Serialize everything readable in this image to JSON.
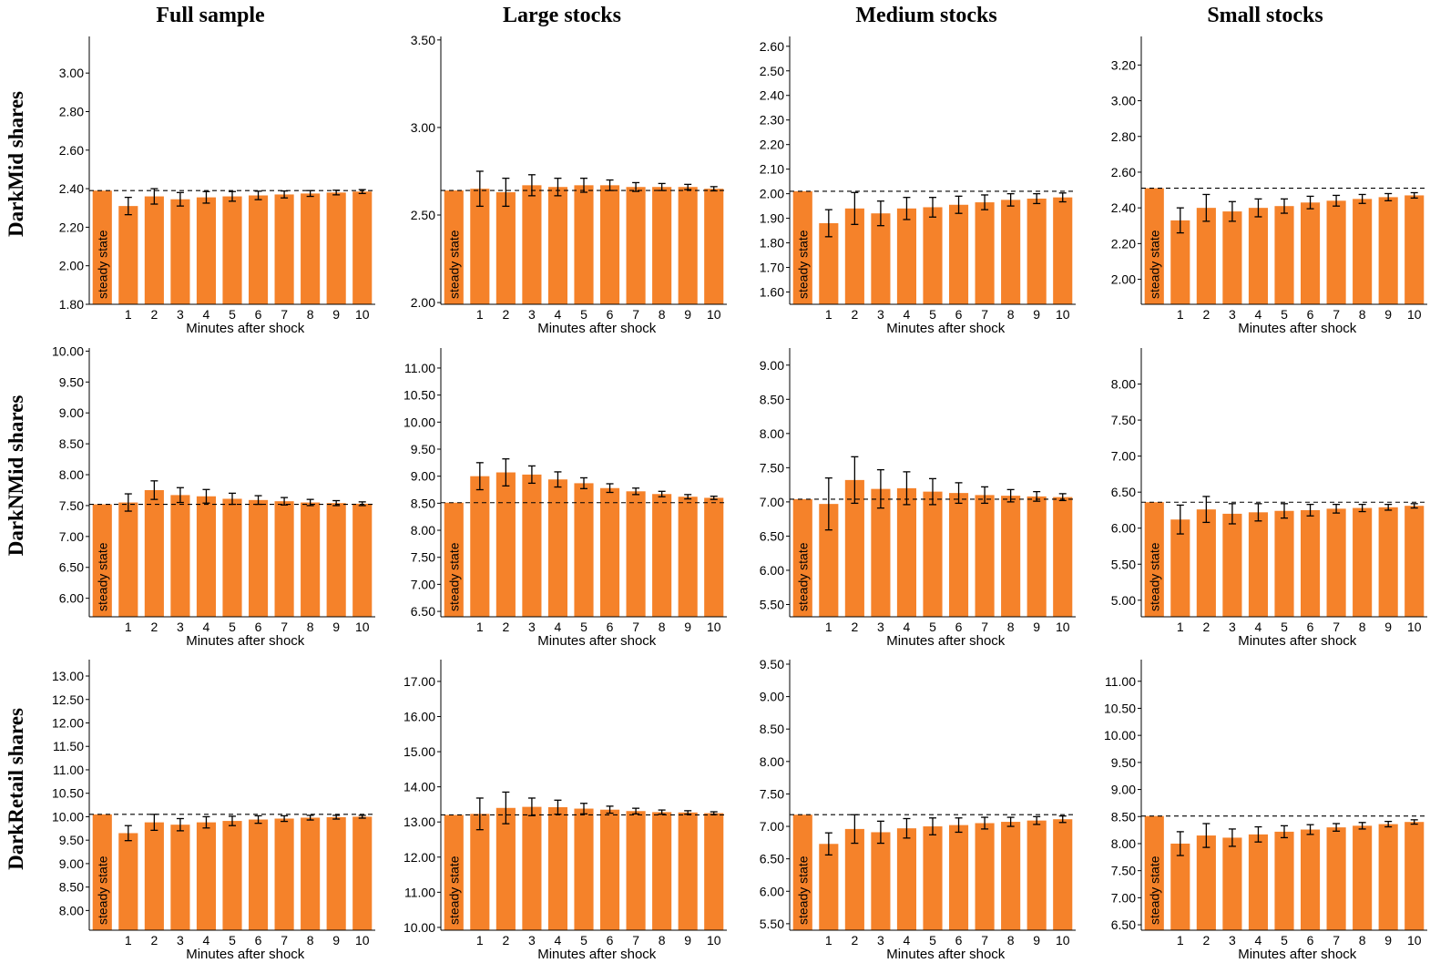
{
  "column_titles": [
    "Full sample",
    "Large stocks",
    "Medium stocks",
    "Small stocks"
  ],
  "row_titles": [
    "DarkMid shares",
    "DarkNMid shares",
    "DarkRetail shares"
  ],
  "colors": {
    "bar": "#f5822a",
    "axis": "#000000",
    "error": "#000000",
    "reference": "#000000"
  },
  "chart_data": [
    {
      "type": "bar",
      "row": "DarkMid shares",
      "column": "Full sample",
      "categories": [
        "1",
        "2",
        "3",
        "4",
        "5",
        "6",
        "7",
        "8",
        "9",
        "10"
      ],
      "xlabel": "Minutes after shock",
      "steady_state_label": "steady state",
      "steady_state": 2.39,
      "ylim": [
        1.8,
        3.19
      ],
      "yticks": [
        "1.80",
        "2.00",
        "2.20",
        "2.40",
        "2.60",
        "2.80",
        "3.00"
      ],
      "values": [
        2.31,
        2.36,
        2.345,
        2.355,
        2.36,
        2.365,
        2.37,
        2.375,
        2.38,
        2.385
      ],
      "errors": [
        0.045,
        0.04,
        0.035,
        0.03,
        0.025,
        0.022,
        0.018,
        0.015,
        0.012,
        0.01
      ]
    },
    {
      "type": "bar",
      "row": "DarkMid shares",
      "column": "Large stocks",
      "categories": [
        "1",
        "2",
        "3",
        "4",
        "5",
        "6",
        "7",
        "8",
        "9",
        "10"
      ],
      "xlabel": "Minutes after shock",
      "steady_state_label": "steady state",
      "steady_state": 2.64,
      "ylim": [
        1.99,
        3.52
      ],
      "yticks": [
        "2.00",
        "2.50",
        "3.00",
        "3.50"
      ],
      "values": [
        2.65,
        2.63,
        2.67,
        2.66,
        2.67,
        2.67,
        2.66,
        2.66,
        2.66,
        2.65
      ],
      "errors": [
        0.1,
        0.08,
        0.06,
        0.05,
        0.04,
        0.03,
        0.025,
        0.02,
        0.015,
        0.012
      ]
    },
    {
      "type": "bar",
      "row": "DarkMid shares",
      "column": "Medium stocks",
      "categories": [
        "1",
        "2",
        "3",
        "4",
        "5",
        "6",
        "7",
        "8",
        "9",
        "10"
      ],
      "xlabel": "Minutes after shock",
      "steady_state_label": "steady state",
      "steady_state": 2.01,
      "ylim": [
        1.55,
        2.64
      ],
      "yticks": [
        "1.60",
        "1.70",
        "1.80",
        "1.90",
        "2.00",
        "2.10",
        "2.20",
        "2.30",
        "2.40",
        "2.50",
        "2.60"
      ],
      "values": [
        1.88,
        1.94,
        1.92,
        1.94,
        1.945,
        1.955,
        1.965,
        1.975,
        1.98,
        1.985
      ],
      "errors": [
        0.055,
        0.065,
        0.05,
        0.045,
        0.04,
        0.035,
        0.03,
        0.025,
        0.02,
        0.018
      ]
    },
    {
      "type": "bar",
      "row": "DarkMid shares",
      "column": "Small stocks",
      "categories": [
        "1",
        "2",
        "3",
        "4",
        "5",
        "6",
        "7",
        "8",
        "9",
        "10"
      ],
      "xlabel": "Minutes after shock",
      "steady_state_label": "steady state",
      "steady_state": 2.51,
      "ylim": [
        1.86,
        3.36
      ],
      "yticks": [
        "2.00",
        "2.20",
        "2.40",
        "2.60",
        "2.80",
        "3.00",
        "3.20"
      ],
      "values": [
        2.33,
        2.4,
        2.38,
        2.4,
        2.41,
        2.43,
        2.44,
        2.45,
        2.46,
        2.47
      ],
      "errors": [
        0.07,
        0.075,
        0.055,
        0.05,
        0.04,
        0.035,
        0.03,
        0.025,
        0.02,
        0.015
      ]
    },
    {
      "type": "bar",
      "row": "DarkNMid shares",
      "column": "Full sample",
      "categories": [
        "1",
        "2",
        "3",
        "4",
        "5",
        "6",
        "7",
        "8",
        "9",
        "10"
      ],
      "xlabel": "Minutes after shock",
      "steady_state_label": "steady state",
      "steady_state": 7.52,
      "ylim": [
        5.7,
        10.05
      ],
      "yticks": [
        "6.00",
        "6.50",
        "7.00",
        "7.50",
        "8.00",
        "8.50",
        "9.00",
        "9.50",
        "10.00"
      ],
      "values": [
        7.55,
        7.75,
        7.67,
        7.65,
        7.61,
        7.59,
        7.57,
        7.55,
        7.54,
        7.53
      ],
      "errors": [
        0.14,
        0.15,
        0.12,
        0.11,
        0.09,
        0.07,
        0.06,
        0.05,
        0.04,
        0.03
      ]
    },
    {
      "type": "bar",
      "row": "DarkNMid shares",
      "column": "Large stocks",
      "categories": [
        "1",
        "2",
        "3",
        "4",
        "5",
        "6",
        "7",
        "8",
        "9",
        "10"
      ],
      "xlabel": "Minutes after shock",
      "steady_state_label": "steady state",
      "steady_state": 8.51,
      "ylim": [
        6.4,
        11.37
      ],
      "yticks": [
        "6.50",
        "7.00",
        "7.50",
        "8.00",
        "8.50",
        "9.00",
        "9.50",
        "10.00",
        "10.50",
        "11.00"
      ],
      "values": [
        9.0,
        9.07,
        9.03,
        8.94,
        8.87,
        8.78,
        8.72,
        8.67,
        8.62,
        8.6
      ],
      "errors": [
        0.25,
        0.25,
        0.16,
        0.14,
        0.1,
        0.08,
        0.06,
        0.05,
        0.04,
        0.03
      ]
    },
    {
      "type": "bar",
      "row": "DarkNMid shares",
      "column": "Medium stocks",
      "categories": [
        "1",
        "2",
        "3",
        "4",
        "5",
        "6",
        "7",
        "8",
        "9",
        "10"
      ],
      "xlabel": "Minutes after shock",
      "steady_state_label": "steady state",
      "steady_state": 7.04,
      "ylim": [
        5.32,
        9.25
      ],
      "yticks": [
        "5.50",
        "6.00",
        "6.50",
        "7.00",
        "7.50",
        "8.00",
        "8.50",
        "9.00"
      ],
      "values": [
        6.97,
        7.32,
        7.19,
        7.2,
        7.15,
        7.13,
        7.1,
        7.09,
        7.08,
        7.07
      ],
      "errors": [
        0.38,
        0.34,
        0.28,
        0.24,
        0.19,
        0.15,
        0.12,
        0.09,
        0.07,
        0.05
      ]
    },
    {
      "type": "bar",
      "row": "DarkNMid shares",
      "column": "Small stocks",
      "categories": [
        "1",
        "2",
        "3",
        "4",
        "5",
        "6",
        "7",
        "8",
        "9",
        "10"
      ],
      "xlabel": "Minutes after shock",
      "steady_state_label": "steady state",
      "steady_state": 6.36,
      "ylim": [
        4.77,
        8.5
      ],
      "yticks": [
        "5.00",
        "5.50",
        "6.00",
        "6.50",
        "7.00",
        "7.50",
        "8.00"
      ],
      "values": [
        6.12,
        6.26,
        6.2,
        6.22,
        6.24,
        6.25,
        6.27,
        6.28,
        6.29,
        6.31
      ],
      "errors": [
        0.2,
        0.18,
        0.14,
        0.12,
        0.1,
        0.08,
        0.06,
        0.05,
        0.04,
        0.03
      ]
    },
    {
      "type": "bar",
      "row": "DarkRetail shares",
      "column": "Full sample",
      "categories": [
        "1",
        "2",
        "3",
        "4",
        "5",
        "6",
        "7",
        "8",
        "9",
        "10"
      ],
      "xlabel": "Minutes after shock",
      "steady_state_label": "steady state",
      "steady_state": 10.05,
      "ylim": [
        7.58,
        13.35
      ],
      "yticks": [
        "8.00",
        "8.50",
        "9.00",
        "9.50",
        "10.00",
        "10.50",
        "11.00",
        "11.50",
        "12.00",
        "12.50",
        "13.00"
      ],
      "values": [
        9.65,
        9.88,
        9.83,
        9.88,
        9.91,
        9.94,
        9.96,
        9.98,
        9.99,
        10.0
      ],
      "errors": [
        0.16,
        0.17,
        0.13,
        0.12,
        0.1,
        0.08,
        0.06,
        0.05,
        0.04,
        0.03
      ]
    },
    {
      "type": "bar",
      "row": "DarkRetail shares",
      "column": "Large stocks",
      "categories": [
        "1",
        "2",
        "3",
        "4",
        "5",
        "6",
        "7",
        "8",
        "9",
        "10"
      ],
      "xlabel": "Minutes after shock",
      "steady_state_label": "steady state",
      "steady_state": 13.2,
      "ylim": [
        9.92,
        17.62
      ],
      "yticks": [
        "10.00",
        "11.00",
        "12.00",
        "13.00",
        "14.00",
        "15.00",
        "16.00",
        "17.00"
      ],
      "values": [
        13.23,
        13.4,
        13.43,
        13.42,
        13.38,
        13.35,
        13.31,
        13.28,
        13.27,
        13.25
      ],
      "errors": [
        0.45,
        0.45,
        0.25,
        0.2,
        0.15,
        0.1,
        0.08,
        0.06,
        0.05,
        0.04
      ]
    },
    {
      "type": "bar",
      "row": "DarkRetail shares",
      "column": "Medium stocks",
      "categories": [
        "1",
        "2",
        "3",
        "4",
        "5",
        "6",
        "7",
        "8",
        "9",
        "10"
      ],
      "xlabel": "Minutes after shock",
      "steady_state_label": "steady state",
      "steady_state": 7.18,
      "ylim": [
        5.4,
        9.57
      ],
      "yticks": [
        "5.50",
        "6.00",
        "6.50",
        "7.00",
        "7.50",
        "8.00",
        "8.50",
        "9.00",
        "9.50"
      ],
      "values": [
        6.73,
        6.96,
        6.91,
        6.97,
        7.0,
        7.02,
        7.05,
        7.07,
        7.09,
        7.11
      ],
      "errors": [
        0.17,
        0.22,
        0.17,
        0.15,
        0.13,
        0.11,
        0.09,
        0.07,
        0.06,
        0.05
      ]
    },
    {
      "type": "bar",
      "row": "DarkRetail shares",
      "column": "Small stocks",
      "categories": [
        "1",
        "2",
        "3",
        "4",
        "5",
        "6",
        "7",
        "8",
        "9",
        "10"
      ],
      "xlabel": "Minutes after shock",
      "steady_state_label": "steady state",
      "steady_state": 8.51,
      "ylim": [
        6.4,
        11.4
      ],
      "yticks": [
        "6.50",
        "7.00",
        "7.50",
        "8.00",
        "8.50",
        "9.00",
        "9.50",
        "10.00",
        "10.50",
        "11.00"
      ],
      "values": [
        8.0,
        8.15,
        8.11,
        8.17,
        8.22,
        8.26,
        8.3,
        8.33,
        8.36,
        8.4
      ],
      "errors": [
        0.22,
        0.22,
        0.16,
        0.14,
        0.11,
        0.09,
        0.07,
        0.06,
        0.05,
        0.04
      ]
    }
  ]
}
